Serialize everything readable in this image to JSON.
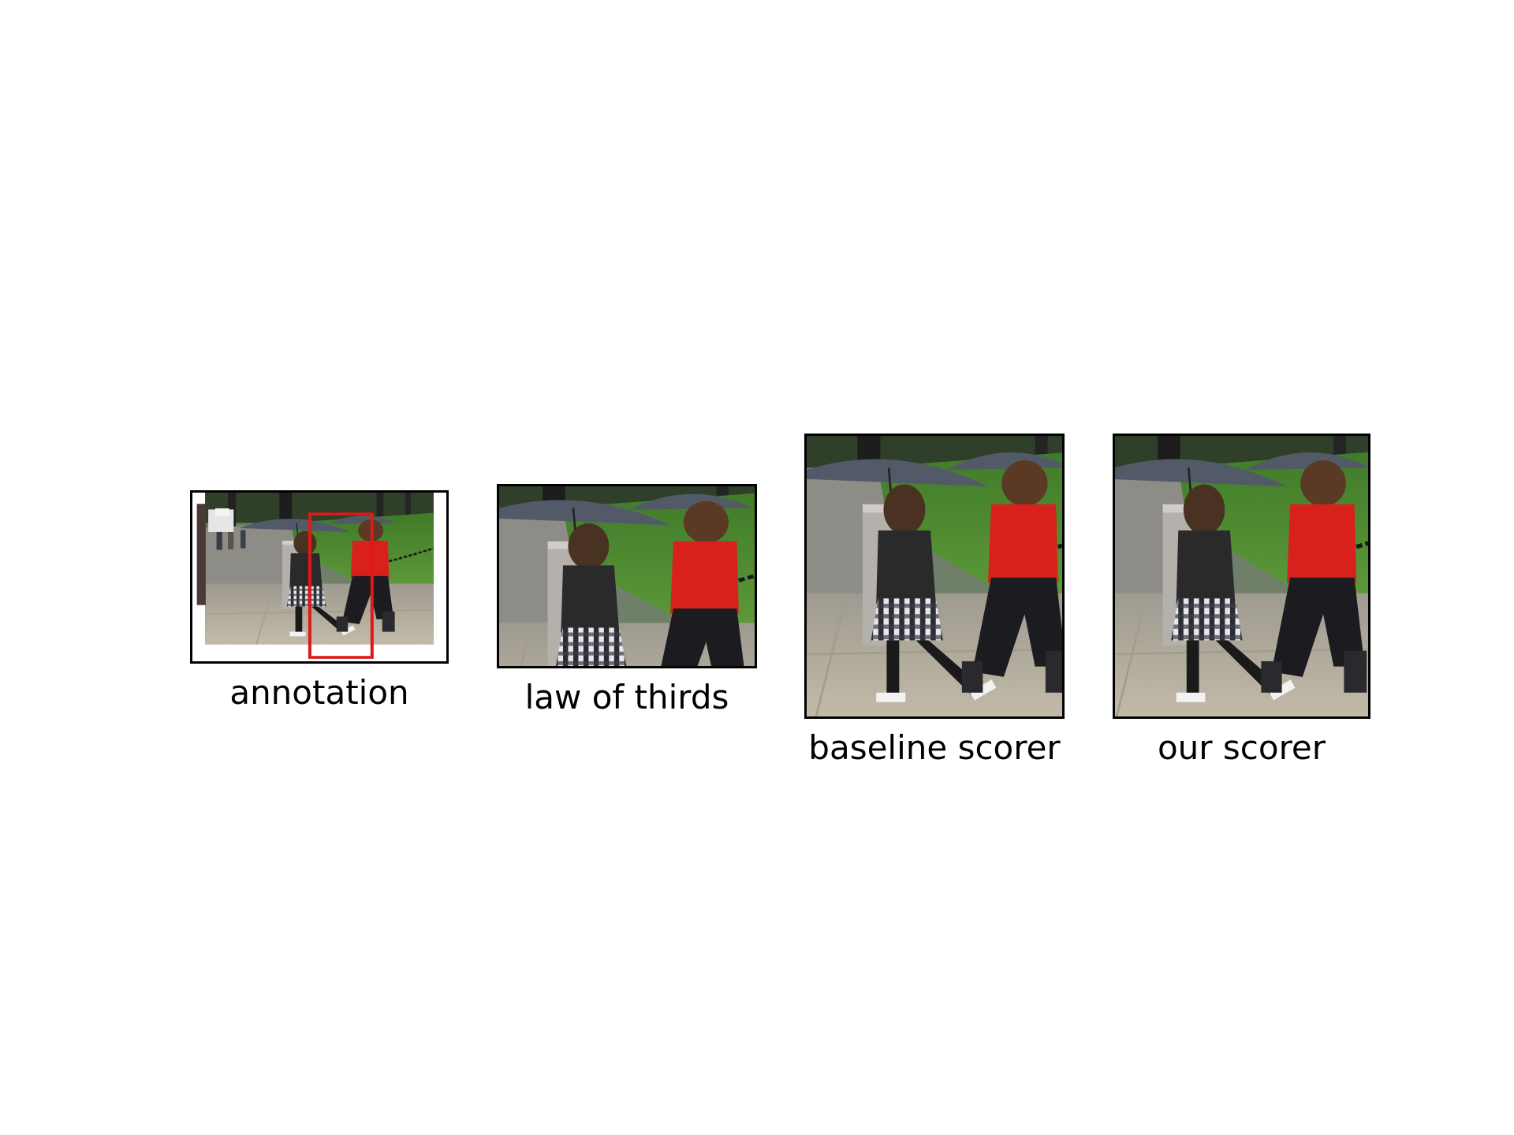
{
  "panels": [
    {
      "caption": "annotation"
    },
    {
      "caption": "law of thirds"
    },
    {
      "caption": "baseline scorer"
    },
    {
      "caption": "our scorer"
    }
  ],
  "colors": {
    "box": "#e01818",
    "frame": "#000000",
    "jacket": "#d8211c",
    "grass": "#4f8a32",
    "umbrella": "#505867",
    "pavement": "#b9b2a2"
  }
}
